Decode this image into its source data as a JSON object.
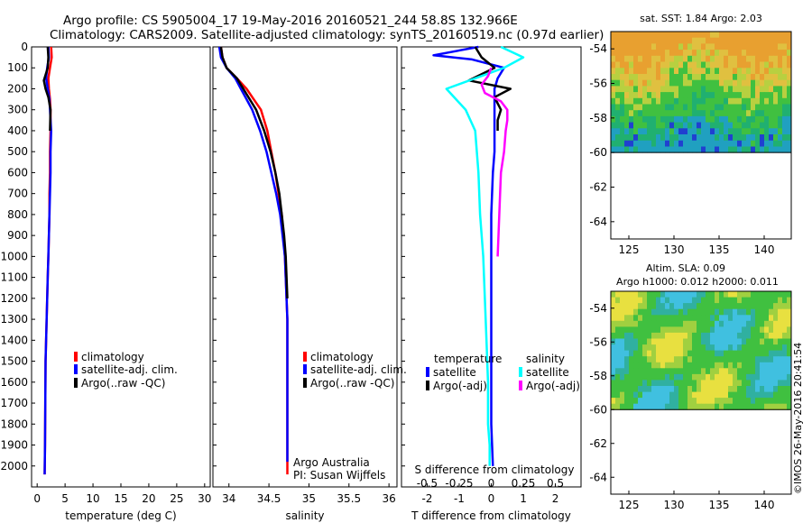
{
  "title": {
    "line1": "Argo profile: CS 5905004_17 19-May-2016 20160521_244 58.8S 132.966E",
    "line2": "Climatology: CARS2009. Satellite-adjusted climatology: synTS_20160519.nc (0.97d earlier)"
  },
  "footer_stamp": "©IMOS 26-May-2016 20:41:54",
  "colors": {
    "climatology": "#ff0000",
    "satellite": "#0000ff",
    "argo": "#000000",
    "sal_satellite": "#00ffff",
    "sal_argo": "#ff00ff"
  },
  "chart_data": [
    {
      "id": "temperature",
      "type": "line",
      "xlabel": "temperature (deg C)",
      "ylabel": "",
      "xlim": [
        -1,
        31
      ],
      "ylim": [
        2100,
        0
      ],
      "xticks": [
        0,
        5,
        10,
        15,
        20,
        25,
        30
      ],
      "yticks": [
        0,
        100,
        200,
        300,
        400,
        500,
        600,
        700,
        800,
        900,
        1000,
        1100,
        1200,
        1300,
        1400,
        1500,
        1600,
        1700,
        1800,
        1900,
        2000
      ],
      "legend": [
        "climatology",
        "satellite-adj. clim.",
        "Argo(..raw -QC)"
      ],
      "series": [
        {
          "name": "climatology",
          "color": "#ff0000",
          "x": [
            2.5,
            2.6,
            2.3,
            2.0,
            2.1,
            2.3,
            2.4,
            2.4,
            2.3,
            2.3,
            2.2,
            2.2,
            2.1,
            2.0,
            1.9,
            1.8,
            1.7,
            1.6,
            1.5,
            1.45,
            1.4,
            1.35
          ],
          "y": [
            0,
            50,
            100,
            150,
            200,
            250,
            300,
            400,
            500,
            600,
            700,
            800,
            900,
            1000,
            1100,
            1200,
            1300,
            1400,
            1500,
            1700,
            1900,
            2040
          ]
        },
        {
          "name": "satellite-adj. clim.",
          "color": "#0000ff",
          "x": [
            2.0,
            2.1,
            1.8,
            1.6,
            1.9,
            2.2,
            2.3,
            2.5,
            2.4,
            2.4,
            2.3,
            2.2,
            2.1,
            2.0,
            1.9,
            1.8,
            1.7,
            1.6,
            1.5,
            1.45,
            1.4,
            1.35
          ],
          "y": [
            0,
            50,
            100,
            150,
            200,
            250,
            300,
            400,
            500,
            600,
            700,
            800,
            900,
            1000,
            1100,
            1200,
            1300,
            1400,
            1500,
            1700,
            1900,
            2040
          ]
        },
        {
          "name": "Argo(..raw -QC)",
          "color": "#000000",
          "x": [
            1.9,
            2.0,
            1.9,
            1.2,
            1.5,
            2.0,
            2.4,
            2.3
          ],
          "y": [
            0,
            50,
            100,
            160,
            200,
            240,
            300,
            400
          ]
        }
      ]
    },
    {
      "id": "salinity",
      "type": "line",
      "xlabel": "salinity",
      "ylabel": "",
      "xlim": [
        33.8,
        36.1
      ],
      "ylim": [
        2100,
        0
      ],
      "xticks": [
        34,
        34.5,
        35,
        35.5,
        36
      ],
      "xticklabels": [
        "34",
        "34.5",
        "35",
        "35.5",
        "36"
      ],
      "legend": [
        "climatology",
        "satellite-adj. clim.",
        "Argo(..raw -QC)"
      ],
      "annotation": [
        "Argo Australia",
        "PI: Susan Wijffels"
      ],
      "series": [
        {
          "name": "climatology",
          "color": "#ff0000",
          "x": [
            33.9,
            33.92,
            33.97,
            34.1,
            34.22,
            34.31,
            34.4,
            34.48,
            34.53,
            34.58,
            34.62,
            34.66,
            34.68,
            34.7,
            34.71,
            34.72,
            34.73,
            34.73,
            34.73,
            34.73,
            34.73
          ],
          "y": [
            0,
            50,
            100,
            150,
            200,
            250,
            300,
            400,
            500,
            600,
            700,
            800,
            900,
            1000,
            1100,
            1200,
            1300,
            1400,
            1600,
            1800,
            2040
          ]
        },
        {
          "name": "satellite-adj. clim.",
          "color": "#0000ff",
          "x": [
            33.88,
            33.9,
            33.97,
            34.08,
            34.15,
            34.22,
            34.29,
            34.39,
            34.47,
            34.53,
            34.59,
            34.64,
            34.67,
            34.7,
            34.71,
            34.72,
            34.73,
            34.73,
            34.73,
            34.73,
            34.73
          ],
          "y": [
            0,
            50,
            100,
            150,
            200,
            250,
            300,
            400,
            500,
            600,
            700,
            800,
            900,
            1000,
            1100,
            1200,
            1300,
            1400,
            1600,
            1800,
            1980
          ]
        },
        {
          "name": "Argo(..raw -QC)",
          "color": "#000000",
          "x": [
            33.9,
            33.92,
            33.97,
            34.1,
            34.18,
            34.26,
            34.34,
            34.44,
            34.52,
            34.58,
            34.63,
            34.66,
            34.69,
            34.71,
            34.72,
            34.73
          ],
          "y": [
            0,
            50,
            100,
            150,
            200,
            250,
            300,
            400,
            500,
            600,
            700,
            800,
            900,
            1000,
            1100,
            1200
          ]
        }
      ]
    },
    {
      "id": "difference",
      "type": "line",
      "xlabel": "T difference from climatology",
      "x2label": "S difference from climatology",
      "ylabel": "",
      "xlim": [
        -2.8,
        2.8
      ],
      "ylim": [
        2100,
        0
      ],
      "xticks": [
        -2,
        -1,
        0,
        1,
        2
      ],
      "x2ticks": [
        -0.5,
        -0.25,
        0,
        0.25,
        0.5
      ],
      "x2ticklabels": [
        "-0.5",
        "-0.25",
        "0",
        "0.25",
        "0.5"
      ],
      "legend_temperature_title": "temperature",
      "legend_salinity_title": "salinity",
      "legend": [
        "satellite",
        "Argo(-adj)",
        "satellite",
        "Argo(-adj)"
      ],
      "series": [
        {
          "name": "satellite",
          "group": "temperature",
          "color": "#0000ff",
          "x": [
            -0.4,
            -1.8,
            -0.6,
            0.4,
            0.2,
            0.1,
            0.1,
            0.1,
            0.1,
            0.05,
            0.0,
            0.0,
            0.0,
            0.0,
            0.0,
            0.0,
            0.05
          ],
          "y": [
            0,
            40,
            60,
            100,
            150,
            200,
            300,
            400,
            500,
            600,
            800,
            1000,
            1200,
            1400,
            1600,
            1800,
            2000
          ]
        },
        {
          "name": "Argo(-adj)",
          "group": "temperature",
          "color": "#000000",
          "x": [
            -0.5,
            -0.3,
            0.1,
            -0.7,
            0.6,
            0.1,
            0.3,
            0.2,
            0.2
          ],
          "y": [
            0,
            50,
            100,
            160,
            200,
            240,
            300,
            350,
            400
          ]
        },
        {
          "name": "satellite",
          "group": "salinity",
          "color": "#00ffff",
          "x": [
            0.3,
            1.0,
            0.4,
            -1.4,
            -0.8,
            -0.5,
            -0.45,
            -0.4,
            -0.35,
            -0.25,
            -0.2,
            -0.15,
            -0.1,
            -0.1,
            -0.05,
            -0.05
          ],
          "y": [
            0,
            50,
            100,
            200,
            300,
            400,
            500,
            600,
            800,
            1000,
            1200,
            1400,
            1600,
            1800,
            1900,
            2000
          ]
        },
        {
          "name": "Argo(-adj)",
          "group": "salinity",
          "color": "#ff00ff",
          "x": [
            0.0,
            -0.1,
            -0.3,
            -0.2,
            0.3,
            0.5,
            0.5,
            0.45,
            0.4,
            0.3,
            0.25,
            0.2
          ],
          "y": [
            100,
            140,
            180,
            220,
            260,
            300,
            350,
            400,
            500,
            600,
            800,
            1000
          ]
        }
      ]
    },
    {
      "id": "sst-map",
      "type": "heatmap",
      "title": "sat. SST: 1.84 Argo: 2.03",
      "xlim": [
        123,
        143
      ],
      "ylim": [
        -65,
        -53
      ],
      "data_lat_range": [
        -60,
        -53
      ],
      "xticks": [
        125,
        130,
        135,
        140
      ],
      "yticks": [
        -54,
        -56,
        -58,
        -60,
        -62,
        -64
      ]
    },
    {
      "id": "sla-map",
      "type": "heatmap",
      "title": "Altim. SLA: 0.09",
      "subtitle": "Argo h1000: 0.012 h2000: 0.011",
      "xlim": [
        123,
        143
      ],
      "ylim": [
        -65,
        -53
      ],
      "data_lat_range": [
        -60,
        -53
      ],
      "xticks": [
        125,
        130,
        135,
        140
      ],
      "yticks": [
        -54,
        -56,
        -58,
        -60,
        -62,
        -64
      ]
    }
  ]
}
